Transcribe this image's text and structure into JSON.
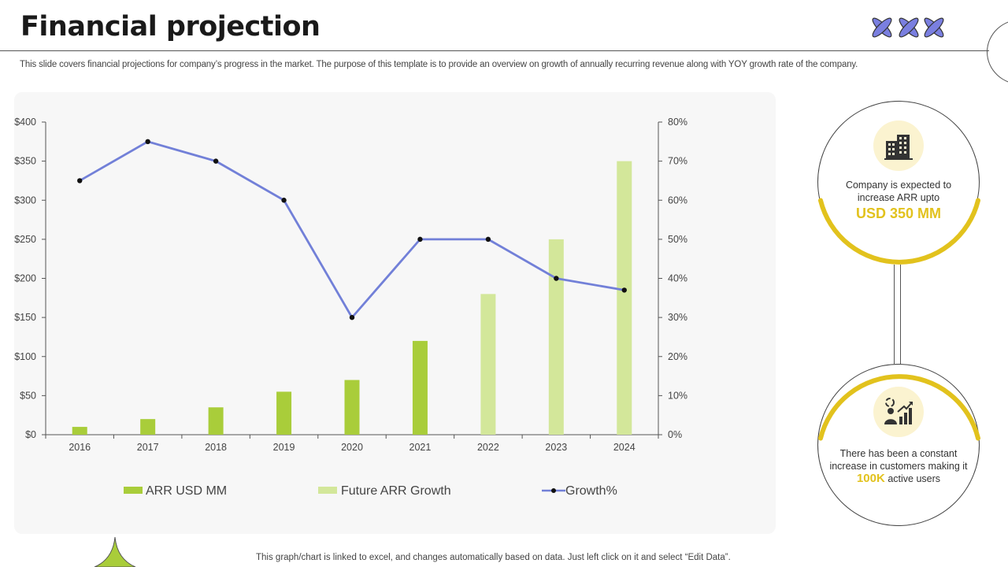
{
  "header": {
    "title": "Financial projection",
    "subtitle": "This slide covers financial projections for company’s progress in the market. The purpose of this template is to provide an overview on growth of annually recurring revenue along with YOY  growth rate of the company."
  },
  "colors": {
    "arr": "#a9cd3a",
    "future": "#d3e79a",
    "growth": "#7280d8",
    "accent": "#e2c21d",
    "logo": "#7a7fe0"
  },
  "chart_data": {
    "type": "bar",
    "categories": [
      "2016",
      "2017",
      "2018",
      "2019",
      "2020",
      "2021",
      "2022",
      "2023",
      "2024"
    ],
    "series": [
      {
        "name": "ARR USD MM",
        "type": "bar",
        "axis": "left",
        "values": [
          10,
          20,
          35,
          55,
          70,
          120,
          null,
          null,
          null
        ]
      },
      {
        "name": "Future ARR Growth",
        "type": "bar",
        "axis": "left",
        "values": [
          null,
          null,
          null,
          null,
          null,
          null,
          180,
          250,
          350
        ]
      },
      {
        "name": "Growth%",
        "type": "line",
        "axis": "right",
        "values": [
          65,
          75,
          70,
          60,
          30,
          50,
          50,
          40,
          37
        ]
      }
    ],
    "y_left": {
      "ticks": [
        "$0",
        "$50",
        "$100",
        "$150",
        "$200",
        "$250",
        "$300",
        "$350",
        "$400"
      ],
      "ylim": [
        0,
        400
      ]
    },
    "y_right": {
      "ticks": [
        "0%",
        "10%",
        "20%",
        "30%",
        "40%",
        "50%",
        "60%",
        "70%",
        "80%"
      ],
      "ylim": [
        0,
        80
      ]
    },
    "grid": false,
    "legend_position": "bottom"
  },
  "highlights": [
    {
      "text": "Company is expected to increase ARR upto",
      "value": "USD 350 MM",
      "icon": "office-building-icon"
    },
    {
      "text_before": "There has been a constant increase in customers making it",
      "value": "100K",
      "text_after": "active users",
      "icon": "growth-chart-person-icon"
    }
  ],
  "footer_note": "This graph/chart is linked to excel,  and changes automatically based on data. Just left click on it and select “Edit Data”."
}
